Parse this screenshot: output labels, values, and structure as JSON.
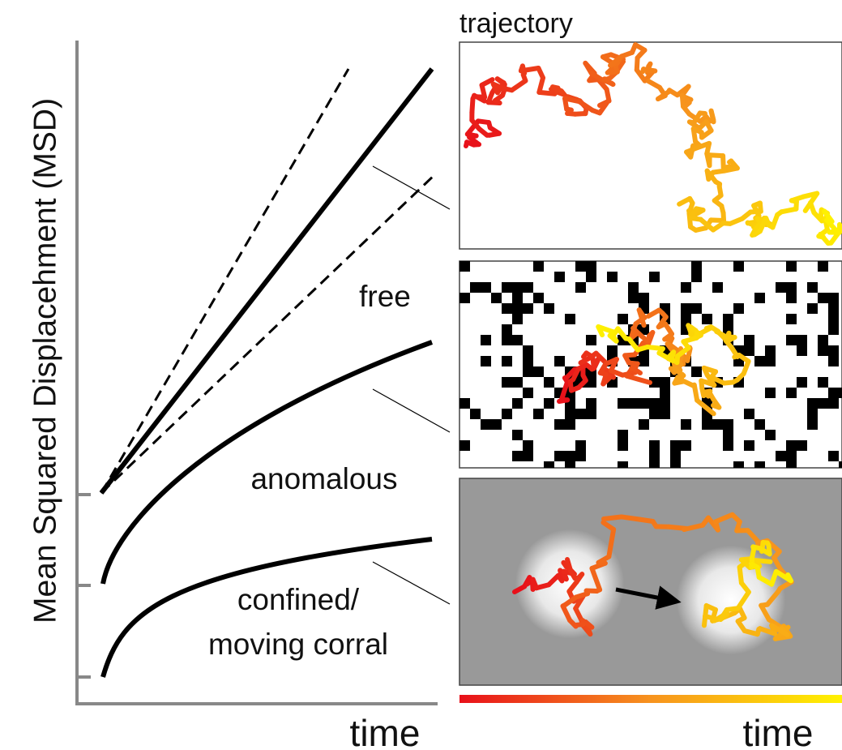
{
  "axis": {
    "y_label": "Mean Squared Displacehment (MSD)",
    "x_label": "time"
  },
  "curves": {
    "free": "free",
    "anomalous": "anomalous",
    "confined_line1": "confined/",
    "confined_line2": "moving corral"
  },
  "panels": {
    "title": "trajectory",
    "colorbar_label": "time"
  }
}
